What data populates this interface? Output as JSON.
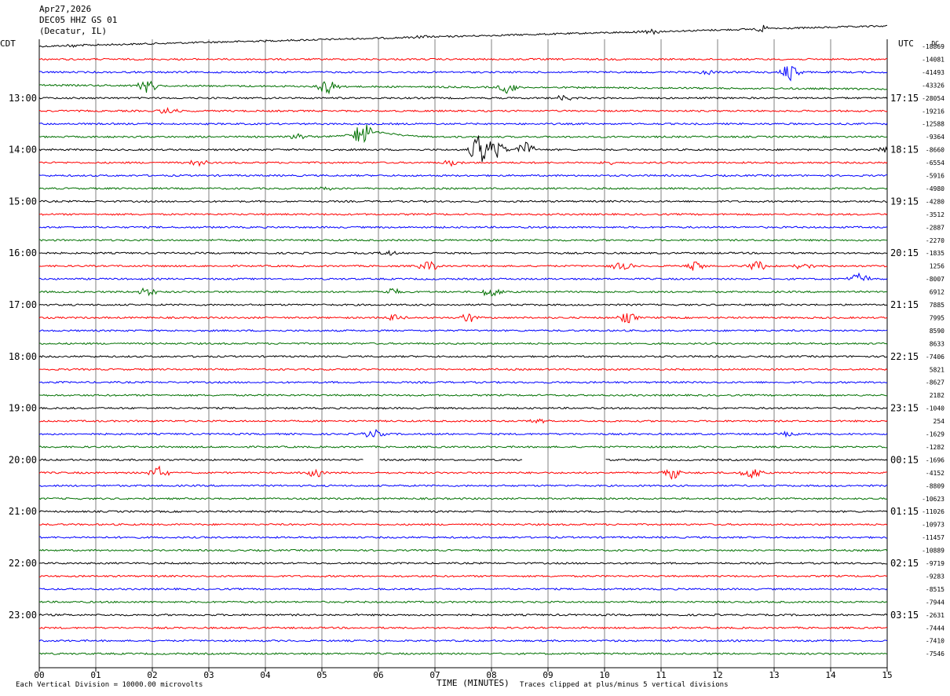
{
  "header": {
    "date": "Apr27,2026",
    "station": "DEC05 HHZ GS 01",
    "location": "(Decatur, IL)"
  },
  "left_axis_label": "CDT",
  "right_axis_label": "UTC",
  "footer": {
    "scale_note": "Each Vertical Division = 10000.00 microvolts",
    "x_title": "TIME (MINUTES)",
    "clip_note": "Traces clipped at plus/minus 5 vertical divisions"
  },
  "colors": {
    "cycle": [
      "#000000",
      "#ff0000",
      "#0000ff",
      "#007000"
    ],
    "grid": "#808080"
  },
  "chart_data": {
    "type": "line",
    "title": "DEC05 HHZ GS 01",
    "xlabel": "TIME (MINUTES)",
    "xlim": [
      0,
      15
    ],
    "x_ticks": [
      "00",
      "01",
      "02",
      "03",
      "04",
      "05",
      "06",
      "07",
      "08",
      "09",
      "10",
      "11",
      "12",
      "13",
      "14",
      "15"
    ],
    "trace_count": 48,
    "left_hour_labels": [
      "13:00",
      "14:00",
      "15:00",
      "16:00",
      "17:00",
      "18:00",
      "19:00",
      "20:00",
      "21:00",
      "22:00",
      "23:00"
    ],
    "right_hour_labels": [
      "17:15",
      "18:15",
      "19:15",
      "20:15",
      "21:15",
      "22:15",
      "23:15",
      "00:15",
      "01:15",
      "02:15",
      "03:15"
    ],
    "dc_label": "DC",
    "dc_offsets": [
      "-18869",
      "-14081",
      "-41493",
      "-43326",
      "-28054",
      "-19216",
      "-12588",
      "-9364",
      "-8660",
      "-6554",
      "-5916",
      "-4980",
      "-4280",
      "-3512",
      "-2887",
      "-2270",
      "-1835",
      "1256",
      "-8007",
      "6912",
      "7885",
      "7995",
      "8590",
      "8633",
      "-7406",
      "5821",
      "-8627",
      "2182",
      "-1040",
      "254",
      "-1629",
      "-1282",
      "-1696",
      "-4152",
      "-8809",
      "-10623",
      "-11026",
      "-10973",
      "-11457",
      "-10889",
      "-9719",
      "-9283",
      "-8515",
      "-7944",
      "-2631",
      "-7444",
      "-7410",
      "-7546"
    ],
    "events": [
      {
        "trace": 0,
        "minute": 0.6,
        "amp": 2
      },
      {
        "trace": 0,
        "minute": 6.8,
        "amp": 2
      },
      {
        "trace": 0,
        "minute": 10.8,
        "amp": 4
      },
      {
        "trace": 0,
        "minute": 12.8,
        "amp": 4
      },
      {
        "trace": 2,
        "minute": 11.8,
        "amp": 3
      },
      {
        "trace": 2,
        "minute": 13.3,
        "amp": 12
      },
      {
        "trace": 3,
        "minute": 1.9,
        "amp": 10
      },
      {
        "trace": 3,
        "minute": 5.1,
        "amp": 10
      },
      {
        "trace": 3,
        "minute": 8.3,
        "amp": 9
      },
      {
        "trace": 4,
        "minute": 9.3,
        "amp": 4
      },
      {
        "trace": 5,
        "minute": 2.3,
        "amp": 5
      },
      {
        "trace": 7,
        "minute": 4.6,
        "amp": 4
      },
      {
        "trace": 7,
        "minute": 5.7,
        "amp": 16
      },
      {
        "trace": 8,
        "minute": 7.8,
        "amp": 22
      },
      {
        "trace": 8,
        "minute": 8.1,
        "amp": 12
      },
      {
        "trace": 8,
        "minute": 8.6,
        "amp": 10
      },
      {
        "trace": 8,
        "minute": 15.0,
        "amp": 5
      },
      {
        "trace": 9,
        "minute": 2.8,
        "amp": 5
      },
      {
        "trace": 9,
        "minute": 7.3,
        "amp": 5
      },
      {
        "trace": 9,
        "minute": 10.0,
        "amp": 3
      },
      {
        "trace": 11,
        "minute": 5.1,
        "amp": 3
      },
      {
        "trace": 16,
        "minute": 6.2,
        "amp": 3
      },
      {
        "trace": 17,
        "minute": 6.9,
        "amp": 7
      },
      {
        "trace": 17,
        "minute": 10.3,
        "amp": 7
      },
      {
        "trace": 17,
        "minute": 11.6,
        "amp": 6
      },
      {
        "trace": 17,
        "minute": 12.7,
        "amp": 7
      },
      {
        "trace": 17,
        "minute": 13.5,
        "amp": 5
      },
      {
        "trace": 18,
        "minute": 14.5,
        "amp": 8
      },
      {
        "trace": 19,
        "minute": 1.9,
        "amp": 6
      },
      {
        "trace": 19,
        "minute": 6.2,
        "amp": 6
      },
      {
        "trace": 19,
        "minute": 8.0,
        "amp": 7
      },
      {
        "trace": 21,
        "minute": 6.3,
        "amp": 5
      },
      {
        "trace": 21,
        "minute": 7.6,
        "amp": 6
      },
      {
        "trace": 21,
        "minute": 10.4,
        "amp": 7
      },
      {
        "trace": 33,
        "minute": 2.1,
        "amp": 8
      },
      {
        "trace": 33,
        "minute": 4.9,
        "amp": 6
      },
      {
        "trace": 33,
        "minute": 11.2,
        "amp": 8
      },
      {
        "trace": 33,
        "minute": 12.6,
        "amp": 8
      },
      {
        "trace": 29,
        "minute": 8.8,
        "amp": 3
      },
      {
        "trace": 30,
        "minute": 5.9,
        "amp": 6
      },
      {
        "trace": 30,
        "minute": 13.3,
        "amp": 4
      }
    ],
    "drift_traces": [
      {
        "trace": 0,
        "shape": "rise",
        "amp": 26
      },
      {
        "trace": 3,
        "shape": "fall",
        "amp": 20
      },
      {
        "trace": 7,
        "shape": "bump",
        "amp": 6
      }
    ],
    "gaps": [
      {
        "trace": 32,
        "from": 5.75,
        "to": 6.0
      },
      {
        "trace": 32,
        "from": 8.55,
        "to": 10.0
      }
    ]
  }
}
